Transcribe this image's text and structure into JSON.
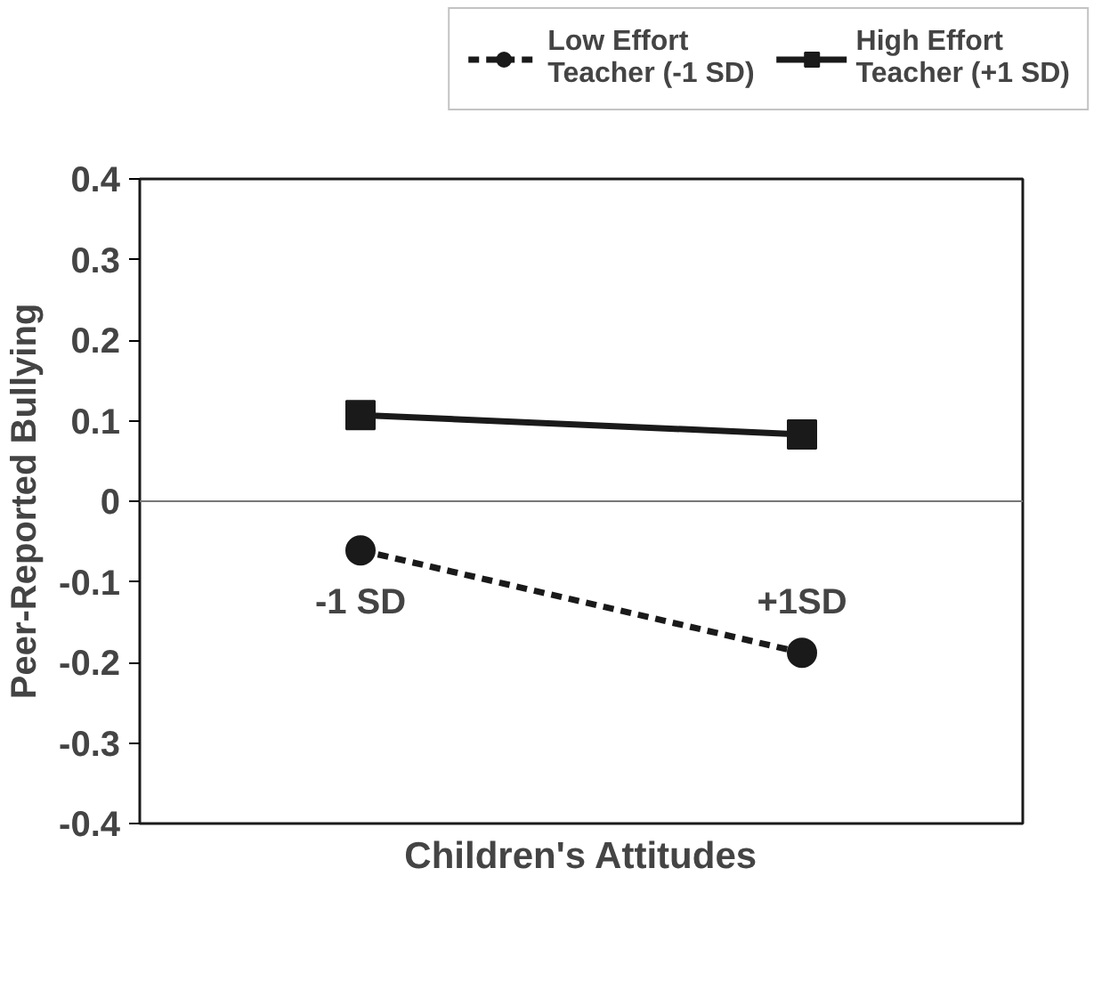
{
  "chart_data": {
    "type": "line",
    "ylabel": "Peer-Reported Bullying",
    "xlabel": "Children's Attitudes",
    "categories": [
      "-1 SD",
      "+1SD"
    ],
    "ylim": [
      -0.4,
      0.4
    ],
    "yticks": [
      -0.4,
      -0.3,
      -0.2,
      -0.1,
      0,
      0.1,
      0.2,
      0.3,
      0.4
    ],
    "grid": false,
    "legend": "top",
    "series": [
      {
        "name": "Low Effort\nTeacher (-1 SD)",
        "color": "#1a1a1a",
        "values": [
          -0.061,
          -0.188
        ],
        "marker": "circle",
        "line_style": "dashed"
      },
      {
        "name": "High Effort\nTeacher (+1 SD)",
        "color": "#1a1a1a",
        "values": [
          0.107,
          0.083
        ],
        "marker": "square",
        "line_style": "solid"
      }
    ]
  }
}
